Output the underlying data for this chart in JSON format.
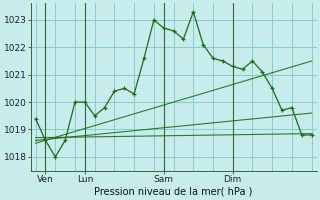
{
  "background_color": "#c8ecec",
  "plot_bg_color": "#c8ecec",
  "grid_color": "#88cccc",
  "line_color": "#1a6b1a",
  "title": "Pression niveau de la mer( hPa )",
  "ylim": [
    1017.5,
    1023.6
  ],
  "yticks": [
    1018,
    1019,
    1020,
    1021,
    1022,
    1023
  ],
  "xtick_labels": [
    "Ven",
    "Lun",
    "Sam",
    "Dim"
  ],
  "xtick_positions": [
    1,
    5,
    13,
    20
  ],
  "vline_positions": [
    1,
    5,
    13,
    20
  ],
  "main_x": [
    0,
    1,
    2,
    3,
    4,
    5,
    6,
    7,
    8,
    9,
    10,
    11,
    12,
    13,
    14,
    15,
    16,
    17,
    18,
    19,
    20,
    21,
    22,
    23,
    24,
    25,
    26,
    27,
    28
  ],
  "main_y": [
    1019.4,
    1018.6,
    1018.0,
    1018.6,
    1020.0,
    1020.0,
    1019.5,
    1019.8,
    1020.4,
    1020.5,
    1020.3,
    1021.6,
    1023.0,
    1022.7,
    1022.6,
    1022.3,
    1023.3,
    1022.1,
    1021.6,
    1021.5,
    1021.3,
    1021.2,
    1021.5,
    1021.1,
    1020.5,
    1019.7,
    1019.8,
    1018.8,
    1018.8
  ],
  "xlim": [
    -0.5,
    28.5
  ],
  "trend_lines": [
    {
      "x": [
        0,
        28
      ],
      "y": [
        1018.7,
        1018.85
      ]
    },
    {
      "x": [
        0,
        28
      ],
      "y": [
        1018.6,
        1019.6
      ]
    },
    {
      "x": [
        0,
        28
      ],
      "y": [
        1018.5,
        1021.5
      ]
    }
  ],
  "title_fontsize": 7,
  "tick_fontsize": 6.5,
  "ylabel_fontsize": 6.5
}
